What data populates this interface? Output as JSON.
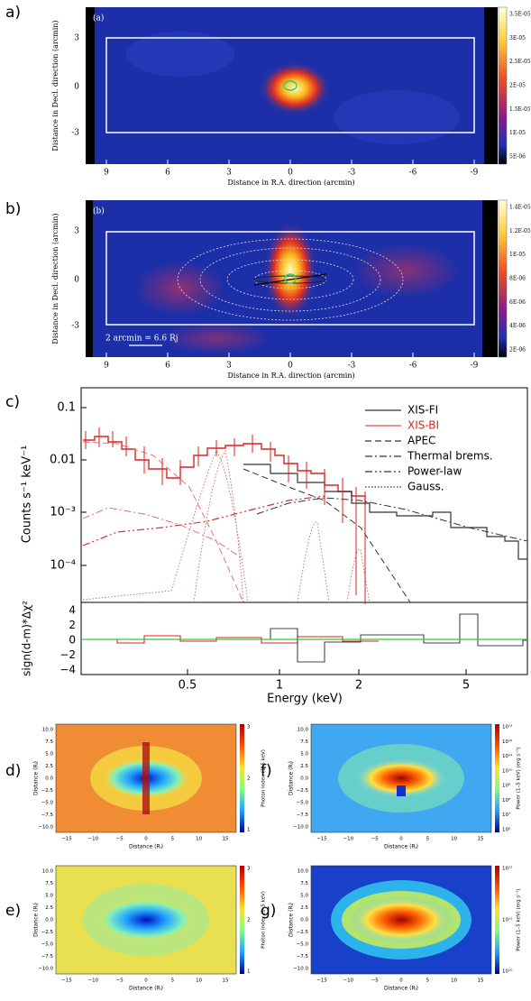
{
  "images": [
    {
      "label": "a)",
      "tag": "(a)",
      "y_label": "Distance in Decl. direction (arcmin)",
      "x_label": "Distance in R.A. direction (arcmin)",
      "x_ticks": [
        "9",
        "6",
        "3",
        "0",
        "-3",
        "-6",
        "-9"
      ],
      "y_ticks": [
        "3",
        "0",
        "-3"
      ],
      "colorbar_ticks": [
        "3.5E-05",
        "3E-05",
        "2.5E-05",
        "2E-05",
        "1.5E-05",
        "1E-05",
        "5E-06"
      ]
    },
    {
      "label": "b)",
      "tag": "(b)",
      "y_label": "Distance in Decl. direction (arcmin)",
      "x_label": "Distance in R.A. direction (arcmin)",
      "x_ticks": [
        "9",
        "6",
        "3",
        "0",
        "-3",
        "-6",
        "-9"
      ],
      "y_ticks": [
        "3",
        "0",
        "-3"
      ],
      "scale_bar": "2 arcmin = 6.6 Rj",
      "colorbar_ticks": [
        "1.4E-05",
        "1.2E-05",
        "1E-05",
        "8E-06",
        "6E-06",
        "4E-06",
        "2E-06"
      ]
    }
  ],
  "spectrum": {
    "label": "c)",
    "y_label": "Counts s⁻¹ keV⁻¹",
    "residual_y_label": "sign(d-m)*Δχ²",
    "x_label": "Energy (keV)",
    "y_ticks": [
      "0.1",
      "0.01",
      "10⁻³",
      "10⁻⁴"
    ],
    "residual_y_ticks": [
      "4",
      "2",
      "0",
      "−2",
      "−4"
    ],
    "x_ticks": [
      "0.5",
      "1",
      "2",
      "5"
    ],
    "legend": [
      "XIS-FI",
      "XIS-BI",
      "APEC",
      "Thermal brems.",
      "Power-law",
      "Gauss."
    ]
  },
  "maps": [
    {
      "label": "d)",
      "x_label": "Distance (Rⱼ)",
      "y_label": "Distance (Rⱼ)",
      "colorbar_label": "Photon Index (1–5 keV)",
      "x_ticks": [
        "−15",
        "−10",
        "−5",
        "0",
        "5",
        "10",
        "15"
      ],
      "y_ticks": [
        "10.0",
        "7.5",
        "5.0",
        "2.5",
        "0.0",
        "−2.5",
        "−5.0",
        "−7.5",
        "−10.0"
      ],
      "colorbar_ticks": [
        "3",
        "2",
        "1"
      ]
    },
    {
      "label": "e)",
      "x_label": "Distance (Rⱼ)",
      "y_label": "Distance (Rⱼ)",
      "colorbar_label": "Photon Index (1–5 keV)",
      "x_ticks": [
        "−15",
        "−10",
        "−5",
        "0",
        "5",
        "10",
        "15"
      ],
      "y_ticks": [
        "10.0",
        "7.5",
        "5.0",
        "2.5",
        "0.0",
        "−2.5",
        "−5.0",
        "−7.5",
        "−10.0"
      ],
      "colorbar_ticks": [
        "3",
        "2",
        "1"
      ]
    },
    {
      "label": "f)",
      "x_label": "Distance (Rⱼ)",
      "y_label": "Distance (Rⱼ)",
      "colorbar_label": "Power (1–5 keV) (erg s⁻¹)",
      "x_ticks": [
        "−15",
        "−10",
        "−5",
        "0",
        "5",
        "10",
        "15"
      ],
      "y_ticks": [
        "10.0",
        "7.5",
        "5.0",
        "2.5",
        "0.0",
        "−2.5",
        "−5.0",
        "−7.5",
        "−10.0"
      ],
      "colorbar_ticks": [
        "10¹³",
        "10¹²",
        "10¹¹",
        "10¹⁰",
        "10⁹",
        "10⁸",
        "10⁷",
        "10⁶"
      ]
    },
    {
      "label": "g)",
      "x_label": "Distance (Rⱼ)",
      "y_label": "Distance (Rⱼ)",
      "colorbar_label": "Power (1–5 keV) (erg s⁻¹)",
      "x_ticks": [
        "−15",
        "−10",
        "−5",
        "0",
        "5",
        "10",
        "15"
      ],
      "y_ticks": [
        "10.0",
        "7.5",
        "5.0",
        "2.5",
        "0.0",
        "−2.5",
        "−5.0",
        "−7.5",
        "−10.0"
      ],
      "colorbar_ticks": [
        "10¹²",
        "10¹¹",
        "10¹⁰"
      ]
    }
  ]
}
